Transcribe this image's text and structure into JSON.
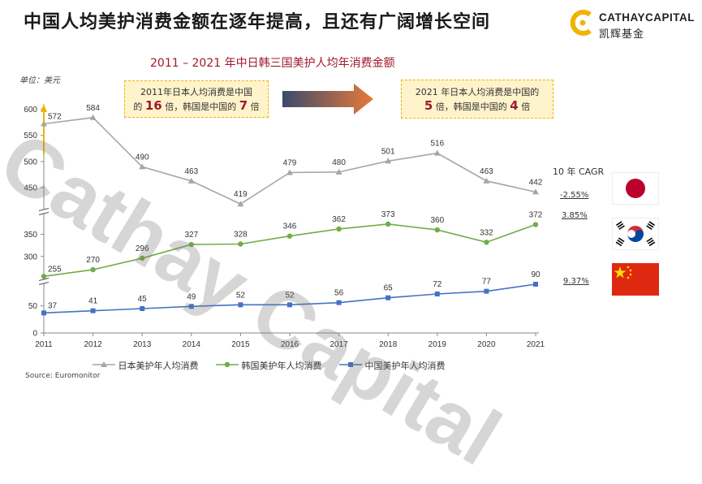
{
  "page": {
    "title": "中国人均美护消费金额在逐年提高，且还有广阔增长空间",
    "source": "Source: Euromonitor"
  },
  "logo": {
    "en": "CATHAYCAPITAL",
    "cn": "凯辉基金"
  },
  "watermark": "Cathay Capital",
  "annotations": {
    "left": {
      "line1": "2011年日本人均消费是中国",
      "pre": "的",
      "japan_multiple": "16",
      "mid": "倍，韩国是中国的",
      "korea_multiple": "7",
      "post": "倍"
    },
    "right": {
      "line1": "2021 年日本人均消费是中国的",
      "japan_multiple": "5",
      "mid": "倍，韩国是中国的",
      "korea_multiple": "4",
      "post": "倍"
    }
  },
  "cagr": {
    "title": "10 年 CAGR",
    "japan": "-2.55%",
    "korea": "3.85%",
    "china": "9.37%"
  },
  "colors": {
    "japan": "#a6a6a6",
    "korea": "#70ad47",
    "china": "#4472c4",
    "accent": "#a0192b",
    "gold": "#f0b400"
  },
  "chart_data": {
    "type": "line",
    "title": "2011 – 2021 年中日韩三国美护人均年消费金额",
    "ylabel": "单位：美元",
    "xlabel": "",
    "x": [
      "2011",
      "2012",
      "2013",
      "2014",
      "2015",
      "2016",
      "2017",
      "2018",
      "2019",
      "2020",
      "2021"
    ],
    "y_axis_segments": [
      {
        "range": [
          0,
          90
        ],
        "ticks": [
          "0",
          "50"
        ]
      },
      {
        "range": [
          250,
          395
        ],
        "ticks": [
          "300",
          "350"
        ]
      },
      {
        "range": [
          410,
          610
        ],
        "ticks": [
          "450",
          "500",
          "550",
          "600"
        ]
      }
    ],
    "series": [
      {
        "key": "japan",
        "name": "日本美护年人均消费",
        "marker": "triangle",
        "values": [
          572,
          584,
          490,
          463,
          419,
          479,
          480,
          501,
          516,
          463,
          442
        ]
      },
      {
        "key": "korea",
        "name": "韩国美护年人均消费",
        "marker": "circle",
        "values": [
          255,
          270,
          296,
          327,
          328,
          346,
          362,
          373,
          360,
          332,
          372
        ]
      },
      {
        "key": "china",
        "name": "中国美护年人均消费",
        "marker": "square",
        "values": [
          37,
          41,
          45,
          49,
          52,
          52,
          56,
          65,
          72,
          77,
          90
        ]
      }
    ],
    "legend_position": "bottom"
  }
}
